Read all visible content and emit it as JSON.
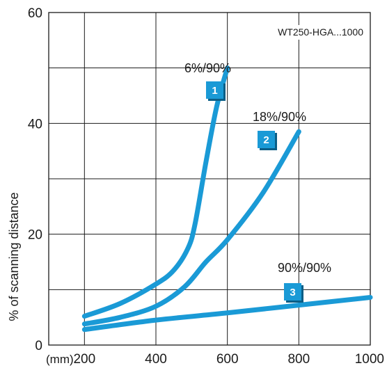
{
  "chart_data": {
    "type": "line",
    "model_label": "WT250-HGA...1000",
    "x_unit": "(mm)",
    "ylabel": "% of scanning distance",
    "xlim": [
      100,
      1000
    ],
    "ylim": [
      0,
      60
    ],
    "x_ticks": [
      200,
      400,
      600,
      800,
      1000
    ],
    "y_ticks": [
      0,
      20,
      40,
      60
    ],
    "x_gridlines": [
      200,
      400,
      600,
      800
    ],
    "y_gridlines": [
      10,
      20,
      30,
      40,
      50
    ],
    "grid": true,
    "line_color": "#1a9ad6",
    "series": [
      {
        "name": "6%/90%",
        "badge": "1",
        "points": [
          [
            200,
            5.2
          ],
          [
            300,
            7.5
          ],
          [
            400,
            11
          ],
          [
            450,
            13.5
          ],
          [
            490,
            17.5
          ],
          [
            510,
            22
          ],
          [
            540,
            33
          ],
          [
            570,
            43
          ],
          [
            600,
            50
          ]
        ]
      },
      {
        "name": "18%/90%",
        "badge": "2",
        "points": [
          [
            200,
            3.8
          ],
          [
            300,
            5
          ],
          [
            400,
            7
          ],
          [
            480,
            10.5
          ],
          [
            540,
            15
          ],
          [
            600,
            19
          ],
          [
            700,
            27.5
          ],
          [
            800,
            38.5
          ]
        ]
      },
      {
        "name": "90%/90%",
        "badge": "3",
        "points": [
          [
            200,
            2.8
          ],
          [
            400,
            4.5
          ],
          [
            600,
            5.8
          ],
          [
            800,
            7.2
          ],
          [
            1000,
            8.6
          ]
        ]
      }
    ]
  }
}
